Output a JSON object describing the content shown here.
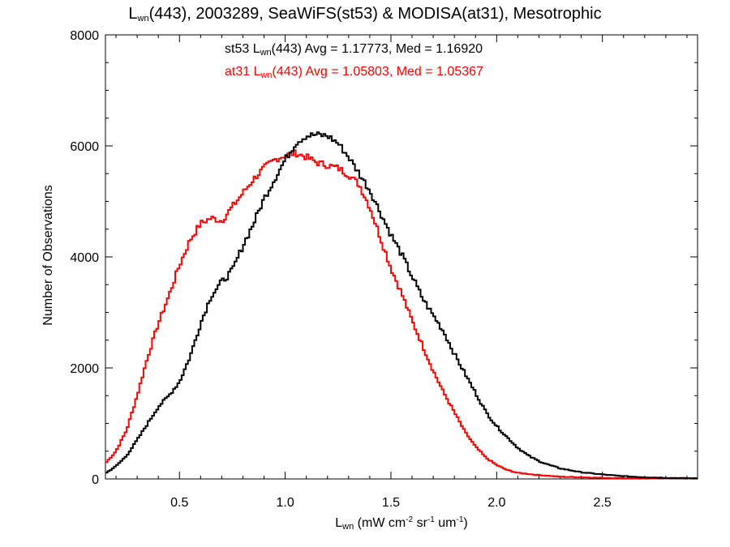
{
  "title": {
    "main": "L",
    "sub": "wn",
    "rest": "(443), 2003289, SeaWiFS(st53) & MODISA(at31), Mesotrophic"
  },
  "annotations": [
    {
      "prefix": "st53 L",
      "sub": "wn",
      "rest": "(443) Avg = 1.17773, Med = 1.16920",
      "color": "#000000"
    },
    {
      "prefix": "at31 L",
      "sub": "wn",
      "rest": "(443) Avg = 1.05803, Med = 1.05367",
      "color": "#ff0000"
    }
  ],
  "axes": {
    "xlabel": {
      "main": "L",
      "sub": "wn",
      "a": " (mW cm",
      "s1": "-2",
      "b": " sr",
      "s2": "-1",
      "c": " um",
      "s3": "-1",
      "d": ")"
    },
    "ylabel": "Number of Observations"
  },
  "chart_data": {
    "type": "line",
    "step": true,
    "xlim": [
      0.15,
      2.95
    ],
    "ylim": [
      0,
      8000
    ],
    "xticks": [
      0.5,
      1.0,
      1.5,
      2.0,
      2.5
    ],
    "xtick_labels": [
      "0.5",
      "1.0",
      "1.5",
      "2.0",
      "2.5"
    ],
    "yticks": [
      0,
      2000,
      4000,
      6000,
      8000
    ],
    "ytick_labels": [
      "0",
      "2000",
      "4000",
      "6000",
      "8000"
    ],
    "series": [
      {
        "name": "st53",
        "color": "#000000",
        "points": [
          [
            0.15,
            100
          ],
          [
            0.2,
            230
          ],
          [
            0.25,
            420
          ],
          [
            0.3,
            700
          ],
          [
            0.35,
            1000
          ],
          [
            0.4,
            1300
          ],
          [
            0.45,
            1500
          ],
          [
            0.5,
            1750
          ],
          [
            0.55,
            2200
          ],
          [
            0.6,
            2800
          ],
          [
            0.65,
            3300
          ],
          [
            0.7,
            3550
          ],
          [
            0.75,
            3750
          ],
          [
            0.8,
            4200
          ],
          [
            0.85,
            4600
          ],
          [
            0.9,
            5050
          ],
          [
            0.95,
            5400
          ],
          [
            1.0,
            5750
          ],
          [
            1.05,
            6050
          ],
          [
            1.1,
            6180
          ],
          [
            1.15,
            6200
          ],
          [
            1.2,
            6180
          ],
          [
            1.25,
            6050
          ],
          [
            1.3,
            5800
          ],
          [
            1.35,
            5500
          ],
          [
            1.4,
            5200
          ],
          [
            1.45,
            4800
          ],
          [
            1.5,
            4400
          ],
          [
            1.55,
            4050
          ],
          [
            1.6,
            3650
          ],
          [
            1.65,
            3250
          ],
          [
            1.7,
            2950
          ],
          [
            1.75,
            2650
          ],
          [
            1.8,
            2250
          ],
          [
            1.85,
            1900
          ],
          [
            1.9,
            1550
          ],
          [
            1.95,
            1200
          ],
          [
            2.0,
            950
          ],
          [
            2.05,
            750
          ],
          [
            2.1,
            560
          ],
          [
            2.15,
            420
          ],
          [
            2.2,
            320
          ],
          [
            2.25,
            250
          ],
          [
            2.3,
            190
          ],
          [
            2.4,
            120
          ],
          [
            2.5,
            80
          ],
          [
            2.6,
            50
          ],
          [
            2.7,
            30
          ],
          [
            2.8,
            20
          ],
          [
            2.95,
            10
          ]
        ]
      },
      {
        "name": "at31",
        "color": "#ff0000",
        "points": [
          [
            0.15,
            280
          ],
          [
            0.2,
            500
          ],
          [
            0.25,
            880
          ],
          [
            0.3,
            1500
          ],
          [
            0.35,
            2200
          ],
          [
            0.4,
            2800
          ],
          [
            0.45,
            3300
          ],
          [
            0.5,
            3850
          ],
          [
            0.55,
            4300
          ],
          [
            0.6,
            4600
          ],
          [
            0.65,
            4700
          ],
          [
            0.7,
            4650
          ],
          [
            0.75,
            4900
          ],
          [
            0.8,
            5150
          ],
          [
            0.85,
            5400
          ],
          [
            0.9,
            5600
          ],
          [
            0.95,
            5750
          ],
          [
            1.0,
            5830
          ],
          [
            1.05,
            5870
          ],
          [
            1.1,
            5800
          ],
          [
            1.15,
            5700
          ],
          [
            1.2,
            5650
          ],
          [
            1.25,
            5600
          ],
          [
            1.3,
            5480
          ],
          [
            1.35,
            5300
          ],
          [
            1.4,
            4900
          ],
          [
            1.45,
            4350
          ],
          [
            1.5,
            3800
          ],
          [
            1.55,
            3350
          ],
          [
            1.6,
            2850
          ],
          [
            1.65,
            2400
          ],
          [
            1.7,
            1950
          ],
          [
            1.75,
            1550
          ],
          [
            1.8,
            1200
          ],
          [
            1.85,
            850
          ],
          [
            1.9,
            580
          ],
          [
            1.95,
            380
          ],
          [
            2.0,
            250
          ],
          [
            2.05,
            160
          ],
          [
            2.1,
            110
          ],
          [
            2.2,
            70
          ],
          [
            2.3,
            40
          ],
          [
            2.4,
            30
          ],
          [
            2.5,
            20
          ],
          [
            2.6,
            15
          ],
          [
            2.8,
            10
          ],
          [
            2.95,
            5
          ]
        ]
      }
    ]
  }
}
